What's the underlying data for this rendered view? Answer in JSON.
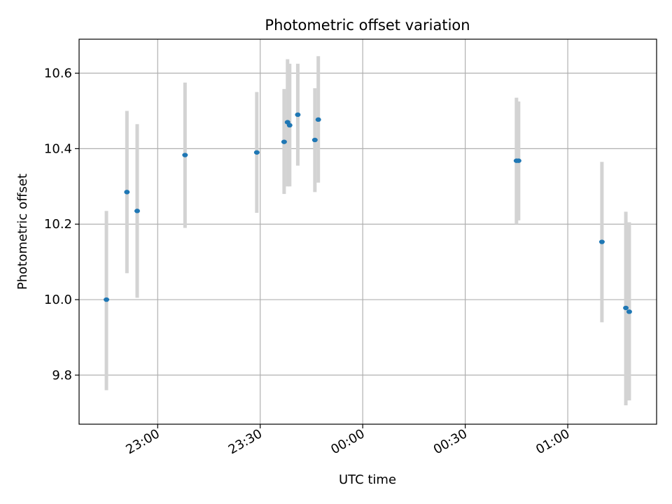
{
  "chart_data": {
    "type": "scatter",
    "title": "Photometric offset variation",
    "xlabel": "UTC time",
    "ylabel": "Photometric offset",
    "x_axis_type": "time",
    "xlim": [
      "22:37",
      "01:26"
    ],
    "ylim": [
      9.67,
      10.69
    ],
    "grid": true,
    "x_ticks": [
      "23:00",
      "23:30",
      "00:00",
      "00:30",
      "01:00"
    ],
    "y_ticks": [
      "9.8",
      "10.0",
      "10.2",
      "10.4",
      "10.6"
    ],
    "marker_color": "#1f77b4",
    "errorbar_color": "#d3d3d3",
    "points": [
      {
        "x": "22:45",
        "y": 10.0,
        "ylow": 9.76,
        "yhigh": 10.235
      },
      {
        "x": "22:51",
        "y": 10.285,
        "ylow": 10.07,
        "yhigh": 10.5
      },
      {
        "x": "22:54",
        "y": 10.235,
        "ylow": 10.005,
        "yhigh": 10.465
      },
      {
        "x": "23:08",
        "y": 10.383,
        "ylow": 10.19,
        "yhigh": 10.575
      },
      {
        "x": "23:29",
        "y": 10.39,
        "ylow": 10.23,
        "yhigh": 10.55
      },
      {
        "x": "23:37",
        "y": 10.418,
        "ylow": 10.28,
        "yhigh": 10.558
      },
      {
        "x": "23:38",
        "y": 10.47,
        "ylow": 10.3,
        "yhigh": 10.637
      },
      {
        "x": "23:38",
        "y": 10.462,
        "ylow": 10.3,
        "yhigh": 10.625
      },
      {
        "x": "23:41",
        "y": 10.49,
        "ylow": 10.355,
        "yhigh": 10.625
      },
      {
        "x": "23:46",
        "y": 10.423,
        "ylow": 10.285,
        "yhigh": 10.56
      },
      {
        "x": "23:47",
        "y": 10.477,
        "ylow": 10.31,
        "yhigh": 10.645
      },
      {
        "x": "00:45",
        "y": 10.368,
        "ylow": 10.2,
        "yhigh": 10.535
      },
      {
        "x": "00:45",
        "y": 10.368,
        "ylow": 10.21,
        "yhigh": 10.525
      },
      {
        "x": "01:10",
        "y": 10.153,
        "ylow": 9.94,
        "yhigh": 10.365
      },
      {
        "x": "01:17",
        "y": 9.978,
        "ylow": 9.72,
        "yhigh": 10.233
      },
      {
        "x": "01:18",
        "y": 9.968,
        "ylow": 9.733,
        "yhigh": 10.205
      }
    ]
  }
}
